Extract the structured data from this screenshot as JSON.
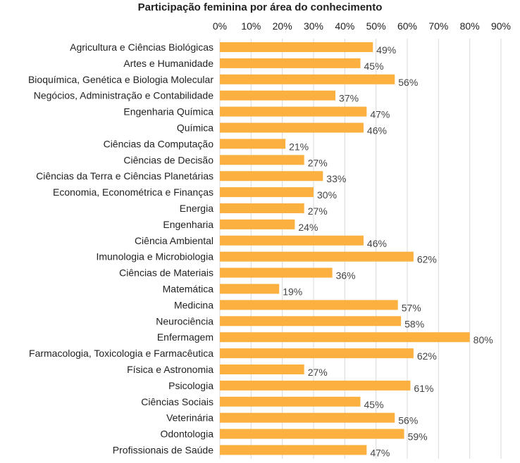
{
  "chart_data": {
    "type": "bar",
    "orientation": "horizontal",
    "title": "Participação feminina por área do conhecimento",
    "xlabel": "",
    "ylabel": "",
    "x_ticks": [
      "0%",
      "10%",
      "20%",
      "30%",
      "40%",
      "50%",
      "60%",
      "70%",
      "80%",
      "90%"
    ],
    "xlim": [
      0,
      90
    ],
    "x_axis_position": "top",
    "grid": true,
    "bar_color": "#FBB040",
    "categories": [
      "Agricultura e Ciências Biológicas",
      "Artes e Humanidade",
      "Bioquímica, Genética e Biologia Molecular",
      "Negócios, Administração e Contabilidade",
      "Engenharia Química",
      "Química",
      "Ciências da Computação",
      "Ciências de Decisão",
      "Ciências da Terra e Ciências Planetárias",
      "Economia, Econométrica e Finanças",
      "Energia",
      "Engenharia",
      "Ciência Ambiental",
      "Imunologia e Microbiologia",
      "Ciências de Materiais",
      "Matemática",
      "Medicina",
      "Neurociência",
      "Enfermagem",
      "Farmacologia, Toxicologia e Farmacêutica",
      "Física e Astronomia",
      "Psicologia",
      "Ciências Sociais",
      "Veterinária",
      "Odontologia",
      "Profissionais de Saúde"
    ],
    "values": [
      49,
      45,
      56,
      37,
      47,
      46,
      21,
      27,
      33,
      30,
      27,
      24,
      46,
      62,
      36,
      19,
      57,
      58,
      80,
      62,
      27,
      61,
      45,
      56,
      59,
      47
    ],
    "value_labels": [
      "49%",
      "45%",
      "56%",
      "37%",
      "47%",
      "46%",
      "21%",
      "27%",
      "33%",
      "30%",
      "27%",
      "24%",
      "46%",
      "62%",
      "36%",
      "19%",
      "57%",
      "58%",
      "80%",
      "62%",
      "27%",
      "61%",
      "45%",
      "56%",
      "59%",
      "47%"
    ]
  }
}
